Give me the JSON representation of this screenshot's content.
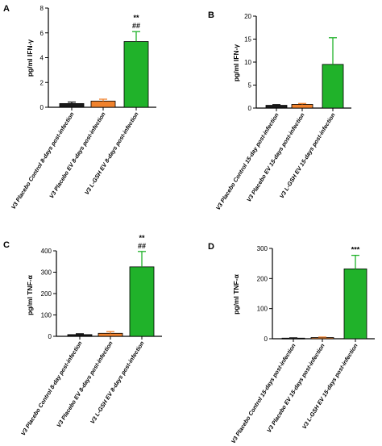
{
  "colors": {
    "control": "#1a1a1a",
    "placebo": "#f0822d",
    "lgsh": "#20b22a",
    "axis": "#000000"
  },
  "chart_data": [
    {
      "panel": "A",
      "type": "bar",
      "ylabel": "pg/ml IFN-γ",
      "ylim": [
        0,
        8
      ],
      "yticks": [
        "0",
        "2",
        "4",
        "6",
        "8"
      ],
      "categories": [
        "V3 Placebo Control 8-days post-infection",
        "V3 Placebo EV 8-days post-infection",
        "V3 L-GSH EV 8-days post-infection"
      ],
      "values": [
        0.3,
        0.5,
        5.3
      ],
      "errors": [
        0.12,
        0.15,
        0.8
      ],
      "annotations": [
        "",
        "",
        "**\n##"
      ]
    },
    {
      "panel": "B",
      "type": "bar",
      "ylabel": "pg/ml IFN-γ",
      "ylim": [
        0,
        20
      ],
      "yticks": [
        "0",
        "5",
        "10",
        "15",
        "20"
      ],
      "categories": [
        "V3 Placebo Control 15-day post-infection",
        "V3 Placebo EV 15-days post-infection",
        "V3 L-GSH EV 15-days post-infection"
      ],
      "values": [
        0.6,
        0.8,
        9.5
      ],
      "errors": [
        0.15,
        0.2,
        5.8
      ],
      "annotations": [
        "",
        "",
        ""
      ]
    },
    {
      "panel": "C",
      "type": "bar",
      "ylabel": "pg/ml TNF-α",
      "ylim": [
        0,
        400
      ],
      "yticks": [
        "0",
        "100",
        "200",
        "300",
        "400"
      ],
      "categories": [
        "V3 Placebo Control 8-day post-infection",
        "V3 Placebo EV 8-days post-infection",
        "V3 L-GSH EV 8-days post-infection"
      ],
      "values": [
        8,
        14,
        325
      ],
      "errors": [
        4,
        8,
        72
      ],
      "annotations": [
        "",
        "",
        "**\n##"
      ]
    },
    {
      "panel": "D",
      "type": "bar",
      "ylabel": "pg/ml TNF-α",
      "ylim": [
        0,
        300
      ],
      "yticks": [
        "0",
        "100",
        "200",
        "300"
      ],
      "categories": [
        "V3 Placebo Control 15-days post-infection",
        "V3 Placebo EV 15-days post-infection",
        "V3 L-GSH EV 15-days post-infection"
      ],
      "values": [
        2,
        4,
        232
      ],
      "errors": [
        1,
        1.5,
        45
      ],
      "annotations": [
        "",
        "",
        "***"
      ]
    }
  ]
}
